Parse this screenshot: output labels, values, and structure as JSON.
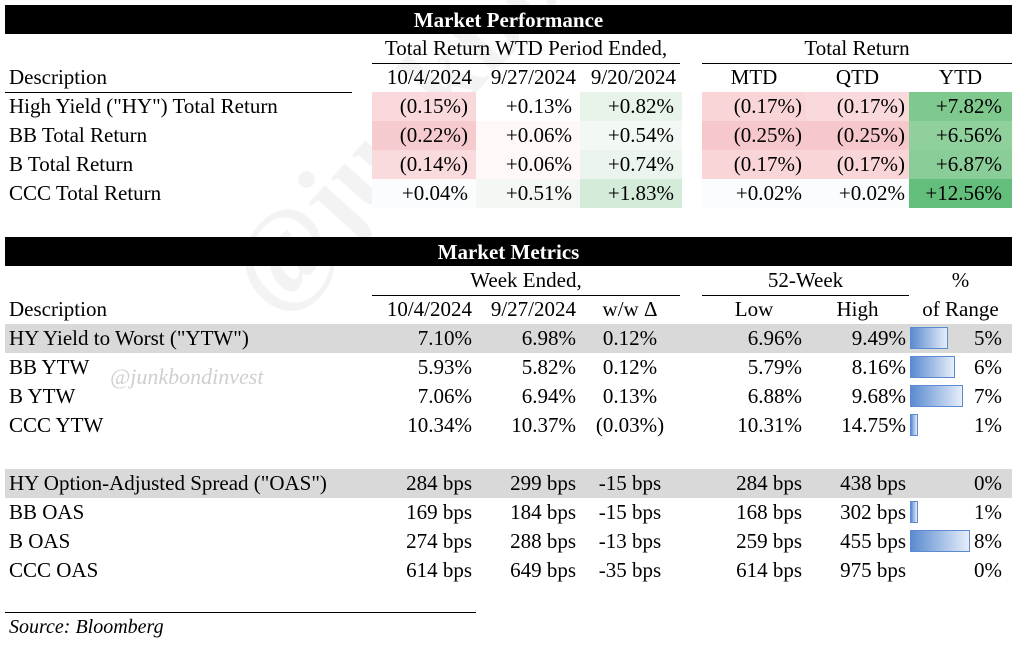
{
  "watermark": "@junkbondinvest",
  "performance": {
    "title": "Market Performance",
    "group_wtd": "Total Return WTD Period Ended,",
    "group_total": "Total Return",
    "headers": [
      "Description",
      "10/4/2024",
      "9/27/2024",
      "9/20/2024",
      "MTD",
      "QTD",
      "YTD"
    ],
    "rows": [
      {
        "label": "High Yield (\"HY\") Total Return",
        "values": [
          "(0.15%)",
          "+0.13%",
          "+0.82%",
          "(0.17%)",
          "(0.17%)",
          "+7.82%"
        ],
        "colors": [
          "#f9d9dc",
          "#ffffff",
          "#e8f4ea",
          "#f9d5d8",
          "#f9d9dc",
          "#7fc98f"
        ]
      },
      {
        "label": "BB Total Return",
        "values": [
          "(0.22%)",
          "+0.06%",
          "+0.54%",
          "(0.25%)",
          "(0.25%)",
          "+6.56%"
        ],
        "colors": [
          "#f6cbcf",
          "#fef8f8",
          "#f2f8f3",
          "#f6c7cb",
          "#f6c7cb",
          "#8fd09c"
        ]
      },
      {
        "label": "B Total Return",
        "values": [
          "(0.14%)",
          "+0.06%",
          "+0.74%",
          "(0.17%)",
          "(0.17%)",
          "+6.87%"
        ],
        "colors": [
          "#f9dadd",
          "#fef8f8",
          "#ebf5ed",
          "#f9d5d8",
          "#f9d5d8",
          "#8acd98"
        ]
      },
      {
        "label": "CCC Total Return",
        "values": [
          "+0.04%",
          "+0.51%",
          "+1.83%",
          "+0.02%",
          "+0.02%",
          "+12.56%"
        ],
        "colors": [
          "#fbfcfd",
          "#f3f8f4",
          "#d3ebd8",
          "#fbfcfd",
          "#fbfcfd",
          "#63be7b"
        ]
      }
    ]
  },
  "metrics": {
    "title": "Market Metrics",
    "group_week": "Week Ended,",
    "group_52": "52-Week",
    "group_pct": "%",
    "headers": [
      "Description",
      "10/4/2024",
      "9/27/2024",
      "w/w Δ",
      "Low",
      "High",
      "of Range"
    ],
    "ytw_rows": [
      {
        "label": "HY Yield to Worst (\"YTW\")",
        "values": [
          "7.10%",
          "6.98%",
          "0.12%",
          "6.96%",
          "9.49%",
          "5%"
        ],
        "range_pct": 5,
        "shaded": true
      },
      {
        "label": "BB YTW",
        "values": [
          "5.93%",
          "5.82%",
          "0.12%",
          "5.79%",
          "8.16%",
          "6%"
        ],
        "range_pct": 6,
        "shaded": false
      },
      {
        "label": "B YTW",
        "values": [
          "7.06%",
          "6.94%",
          "0.13%",
          "6.88%",
          "9.68%",
          "7%"
        ],
        "range_pct": 7,
        "shaded": false
      },
      {
        "label": "CCC YTW",
        "values": [
          "10.34%",
          "10.37%",
          "(0.03%)",
          "10.31%",
          "14.75%",
          "1%"
        ],
        "range_pct": 1,
        "shaded": false
      }
    ],
    "oas_rows": [
      {
        "label": "HY Option-Adjusted Spread (\"OAS\")",
        "values": [
          "284 bps",
          "299 bps",
          "-15 bps",
          "284 bps",
          "438 bps",
          "0%"
        ],
        "range_pct": 0,
        "shaded": true
      },
      {
        "label": "BB OAS",
        "values": [
          "169 bps",
          "184 bps",
          "-15 bps",
          "168 bps",
          "302 bps",
          "1%"
        ],
        "range_pct": 1,
        "shaded": false
      },
      {
        "label": "B OAS",
        "values": [
          "274 bps",
          "288 bps",
          "-13 bps",
          "259 bps",
          "455 bps",
          "8%"
        ],
        "range_pct": 8,
        "shaded": false
      },
      {
        "label": "CCC OAS",
        "values": [
          "614 bps",
          "649 bps",
          "-35 bps",
          "614 bps",
          "975 bps",
          "0%"
        ],
        "range_pct": 0,
        "shaded": false
      }
    ]
  },
  "source": "Source: Bloomberg"
}
